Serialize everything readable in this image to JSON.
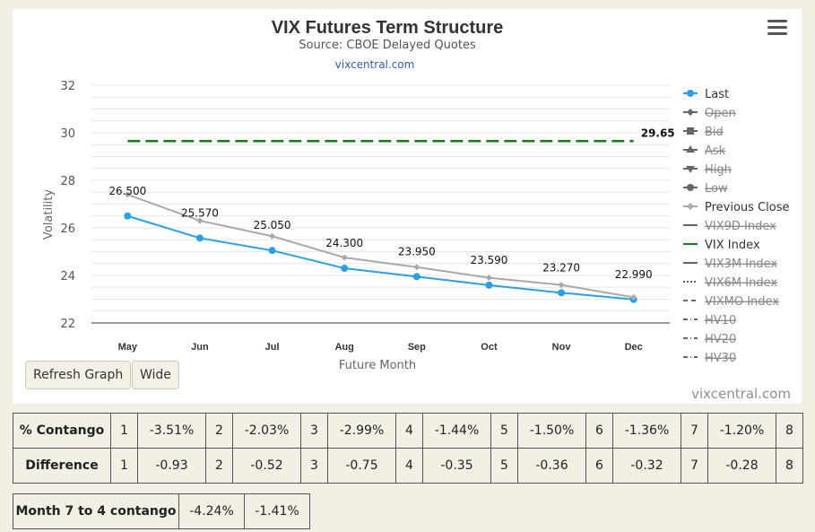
{
  "chart_data": {
    "type": "line",
    "title": "VIX Futures Term Structure",
    "subtitle": "Source: CBOE Delayed Quotes",
    "link_text": "vixcentral.com",
    "xlabel": "Future Month",
    "ylabel": "Volatility",
    "categories": [
      "May",
      "Jun",
      "Jul",
      "Aug",
      "Sep",
      "Oct",
      "Nov",
      "Dec"
    ],
    "ylim": [
      22,
      32
    ],
    "yticks": [
      22,
      24,
      26,
      28,
      30,
      32
    ],
    "grid": true,
    "legend_position": "right",
    "series": [
      {
        "name": "Last",
        "values": [
          26.5,
          25.57,
          25.05,
          24.3,
          23.95,
          23.59,
          23.27,
          22.99
        ],
        "color": "#2aa0e8",
        "labels": [
          "26.500",
          "25.570",
          "25.050",
          "24.300",
          "23.950",
          "23.590",
          "23.270",
          "22.990"
        ]
      },
      {
        "name": "Previous Close",
        "values": [
          27.4,
          26.3,
          25.65,
          24.75,
          24.35,
          23.9,
          23.6,
          23.08
        ],
        "color": "#a9a9a9"
      },
      {
        "name": "VIX Index",
        "value": 29.65,
        "label": "29.65",
        "color": "#1a7a1a",
        "style": "dashed"
      }
    ],
    "legend": [
      {
        "name": "Last",
        "symbol": "circle",
        "color": "#2aa0e8",
        "hidden": false
      },
      {
        "name": "Open",
        "symbol": "diamond",
        "color": "#666666",
        "hidden": true
      },
      {
        "name": "Bid",
        "symbol": "square",
        "color": "#666666",
        "hidden": true
      },
      {
        "name": "Ask",
        "symbol": "triangle",
        "color": "#666666",
        "hidden": true
      },
      {
        "name": "High",
        "symbol": "triangle-down",
        "color": "#666666",
        "hidden": true
      },
      {
        "name": "Low",
        "symbol": "circle",
        "color": "#666666",
        "hidden": true
      },
      {
        "name": "Previous Close",
        "symbol": "diamond",
        "color": "#a9a9a9",
        "hidden": false
      },
      {
        "name": "VIX9D Index",
        "symbol": "line",
        "color": "#666666",
        "hidden": true
      },
      {
        "name": "VIX Index",
        "symbol": "line",
        "color": "#1a7a1a",
        "hidden": false
      },
      {
        "name": "VIX3M Index",
        "symbol": "line",
        "color": "#666666",
        "hidden": true
      },
      {
        "name": "VIX6M Index",
        "symbol": "dotted",
        "color": "#666666",
        "hidden": true
      },
      {
        "name": "VIXMO Index",
        "symbol": "dashed",
        "color": "#666666",
        "hidden": true
      },
      {
        "name": "HV10",
        "symbol": "dashdot",
        "color": "#666666",
        "hidden": true
      },
      {
        "name": "HV20",
        "symbol": "dashdot",
        "color": "#666666",
        "hidden": true
      },
      {
        "name": "HV30",
        "symbol": "dashdot",
        "color": "#666666",
        "hidden": true
      }
    ]
  },
  "buttons": {
    "refresh": "Refresh Graph",
    "wide": "Wide"
  },
  "watermark": "vixcentral.com",
  "menu_icon": "hamburger-menu-icon",
  "contango_table": {
    "rows": [
      {
        "label": "% Contango",
        "cells": [
          "1",
          "-3.51%",
          "2",
          "-2.03%",
          "3",
          "-2.99%",
          "4",
          "-1.44%",
          "5",
          "-1.50%",
          "6",
          "-1.36%",
          "7",
          "-1.20%",
          "8"
        ]
      },
      {
        "label": "Difference",
        "cells": [
          "1",
          "-0.93",
          "2",
          "-0.52",
          "3",
          "-0.75",
          "4",
          "-0.35",
          "5",
          "-0.36",
          "6",
          "-0.32",
          "7",
          "-0.28",
          "8"
        ]
      }
    ]
  },
  "month_table": {
    "label": "Month 7 to 4 contango",
    "value1": "-4.24%",
    "value2": "-1.41%"
  }
}
